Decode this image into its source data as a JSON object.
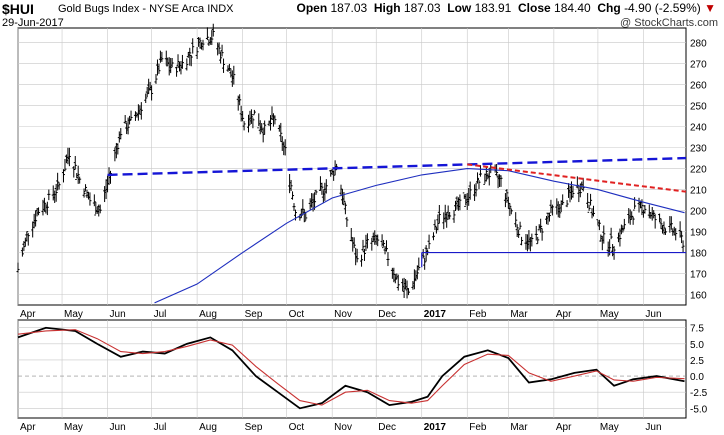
{
  "header": {
    "symbol": "$HUI",
    "name": "Gold Bugs Index - NYSE Arca",
    "exchange": "INDX",
    "date": "29-Jun-2017",
    "open_label": "Open",
    "open": "187.03",
    "high_label": "High",
    "high": "187.03",
    "low_label": "Low",
    "low": "183.91",
    "close_label": "Close",
    "close": "184.40",
    "chg_label": "Chg",
    "chg": "-4.90 (-2.59%)",
    "chg_arrow": "▼",
    "watermark": "@ StockCharts.com"
  },
  "colors": {
    "price_bars": "#000000",
    "ma_line": "#1f2fbf",
    "upper_trend": "#1515d6",
    "lower_trend": "#e02020",
    "support": "#1a1ac8",
    "macd": "#000000",
    "signal": "#c83232",
    "grid": "#c8c8c8",
    "down_arrow": "#c00000"
  },
  "chart_data": [
    {
      "type": "line",
      "ylim": [
        155,
        287
      ],
      "xlim": [
        "2016-04-01",
        "2017-06-30"
      ],
      "x_tick_labels": [
        {
          "date": "2016-04-01",
          "label": "Apr"
        },
        {
          "date": "2016-05-01",
          "label": "May"
        },
        {
          "date": "2016-06-01",
          "label": "Jun"
        },
        {
          "date": "2016-07-01",
          "label": "Jul"
        },
        {
          "date": "2016-08-01",
          "label": "Aug"
        },
        {
          "date": "2016-09-01",
          "label": "Sep"
        },
        {
          "date": "2016-10-01",
          "label": "Oct"
        },
        {
          "date": "2016-11-01",
          "label": "Nov"
        },
        {
          "date": "2016-12-01",
          "label": "Dec"
        },
        {
          "date": "2017-01-01",
          "label": "2017",
          "bold": true
        },
        {
          "date": "2017-02-01",
          "label": "Feb"
        },
        {
          "date": "2017-03-01",
          "label": "Mar"
        },
        {
          "date": "2017-04-01",
          "label": "Apr"
        },
        {
          "date": "2017-05-01",
          "label": "May"
        },
        {
          "date": "2017-06-01",
          "label": "Jun"
        }
      ],
      "y_ticks": [
        160,
        170,
        180,
        190,
        200,
        210,
        220,
        230,
        240,
        250,
        260,
        270,
        280
      ],
      "price_series": {
        "name": "",
        "points": [
          [
            "2016-04-01",
            172
          ],
          [
            "2016-04-08",
            190
          ],
          [
            "2016-04-15",
            200
          ],
          [
            "2016-04-22",
            205
          ],
          [
            "2016-04-29",
            212
          ],
          [
            "2016-05-06",
            228
          ],
          [
            "2016-05-13",
            215
          ],
          [
            "2016-05-20",
            205
          ],
          [
            "2016-05-27",
            200
          ],
          [
            "2016-06-03",
            218
          ],
          [
            "2016-06-10",
            238
          ],
          [
            "2016-06-17",
            242
          ],
          [
            "2016-06-24",
            250
          ],
          [
            "2016-07-01",
            258
          ],
          [
            "2016-07-08",
            272
          ],
          [
            "2016-07-15",
            268
          ],
          [
            "2016-07-22",
            270
          ],
          [
            "2016-07-29",
            276
          ],
          [
            "2016-08-05",
            282
          ],
          [
            "2016-08-12",
            283
          ],
          [
            "2016-08-19",
            272
          ],
          [
            "2016-08-26",
            262
          ],
          [
            "2016-09-02",
            242
          ],
          [
            "2016-09-09",
            246
          ],
          [
            "2016-09-16",
            238
          ],
          [
            "2016-09-23",
            244
          ],
          [
            "2016-09-30",
            228
          ],
          [
            "2016-10-07",
            200
          ],
          [
            "2016-10-14",
            198
          ],
          [
            "2016-10-21",
            206
          ],
          [
            "2016-10-28",
            212
          ],
          [
            "2016-11-04",
            222
          ],
          [
            "2016-11-11",
            196
          ],
          [
            "2016-11-18",
            176
          ],
          [
            "2016-11-25",
            184
          ],
          [
            "2016-12-02",
            186
          ],
          [
            "2016-12-09",
            178
          ],
          [
            "2016-12-16",
            166
          ],
          [
            "2016-12-23",
            161
          ],
          [
            "2016-12-30",
            172
          ],
          [
            "2017-01-06",
            182
          ],
          [
            "2017-01-13",
            196
          ],
          [
            "2017-01-20",
            200
          ],
          [
            "2017-01-27",
            202
          ],
          [
            "2017-02-03",
            208
          ],
          [
            "2017-02-10",
            215
          ],
          [
            "2017-02-17",
            218
          ],
          [
            "2017-02-24",
            214
          ],
          [
            "2017-03-03",
            200
          ],
          [
            "2017-03-10",
            188
          ],
          [
            "2017-03-17",
            184
          ],
          [
            "2017-03-24",
            192
          ],
          [
            "2017-03-31",
            200
          ],
          [
            "2017-04-07",
            202
          ],
          [
            "2017-04-14",
            210
          ],
          [
            "2017-04-21",
            212
          ],
          [
            "2017-04-28",
            198
          ],
          [
            "2017-05-05",
            186
          ],
          [
            "2017-05-12",
            184
          ],
          [
            "2017-05-19",
            192
          ],
          [
            "2017-05-26",
            200
          ],
          [
            "2017-06-02",
            202
          ],
          [
            "2017-06-09",
            196
          ],
          [
            "2017-06-16",
            192
          ],
          [
            "2017-06-23",
            190
          ],
          [
            "2017-06-29",
            184.4
          ]
        ]
      },
      "moving_average": {
        "name": "",
        "points": [
          [
            "2016-07-03",
            156
          ],
          [
            "2016-08-01",
            165
          ],
          [
            "2016-09-01",
            180
          ],
          [
            "2016-10-01",
            194
          ],
          [
            "2016-11-01",
            206
          ],
          [
            "2016-12-01",
            212
          ],
          [
            "2017-01-01",
            217
          ],
          [
            "2017-02-01",
            220
          ],
          [
            "2017-03-01",
            219
          ],
          [
            "2017-04-01",
            214
          ],
          [
            "2017-05-01",
            210
          ],
          [
            "2017-06-01",
            204
          ],
          [
            "2017-06-29",
            199
          ]
        ]
      },
      "trendlines": [
        {
          "id": "upper-resistance",
          "points": [
            [
              "2016-06-01",
              217
            ],
            [
              "2017-06-30",
              225
            ]
          ]
        },
        {
          "id": "lower-resistance",
          "points": [
            [
              "2017-02-01",
              222
            ],
            [
              "2017-06-30",
              209
            ]
          ]
        },
        {
          "id": "support",
          "points": [
            [
              "2017-01-01",
              180
            ],
            [
              "2017-06-30",
              180
            ]
          ]
        },
        {
          "id": "support-tick",
          "points": [
            [
              "2017-01-01",
              180
            ],
            [
              "2017-01-01",
              173
            ]
          ]
        }
      ]
    },
    {
      "type": "line",
      "ylim": [
        -6.5,
        8.7
      ],
      "xlim": [
        "2016-04-01",
        "2017-06-30"
      ],
      "y_ticks": [
        -5.0,
        -2.5,
        0.0,
        2.5,
        5.0,
        7.5
      ],
      "y_tick_labels": [
        "-5.0",
        "-2.5",
        "0.0",
        "2.5",
        "5.0",
        "7.5"
      ],
      "series": [
        {
          "name": "",
          "points": [
            [
              "2016-04-01",
              6.0
            ],
            [
              "2016-04-20",
              7.5
            ],
            [
              "2016-05-10",
              7.0
            ],
            [
              "2016-05-25",
              5.0
            ],
            [
              "2016-06-10",
              3.0
            ],
            [
              "2016-06-25",
              3.8
            ],
            [
              "2016-07-10",
              3.5
            ],
            [
              "2016-07-25",
              5.0
            ],
            [
              "2016-08-10",
              6.0
            ],
            [
              "2016-08-25",
              4.0
            ],
            [
              "2016-09-10",
              0.0
            ],
            [
              "2016-09-25",
              -2.5
            ],
            [
              "2016-10-10",
              -5.0
            ],
            [
              "2016-10-25",
              -4.2
            ],
            [
              "2016-11-10",
              -1.5
            ],
            [
              "2016-11-25",
              -2.5
            ],
            [
              "2016-12-10",
              -4.5
            ],
            [
              "2016-12-25",
              -4.0
            ],
            [
              "2017-01-05",
              -3.2
            ],
            [
              "2017-01-15",
              0.0
            ],
            [
              "2017-01-30",
              3.0
            ],
            [
              "2017-02-15",
              4.0
            ],
            [
              "2017-03-01",
              2.8
            ],
            [
              "2017-03-15",
              -1.0
            ],
            [
              "2017-03-30",
              -0.5
            ],
            [
              "2017-04-15",
              0.5
            ],
            [
              "2017-04-30",
              1.0
            ],
            [
              "2017-05-12",
              -1.5
            ],
            [
              "2017-05-25",
              -0.5
            ],
            [
              "2017-06-10",
              0.0
            ],
            [
              "2017-06-29",
              -0.8
            ]
          ]
        },
        {
          "name": "",
          "points": [
            [
              "2016-04-01",
              6.5
            ],
            [
              "2016-04-20",
              7.0
            ],
            [
              "2016-05-10",
              7.2
            ],
            [
              "2016-05-25",
              5.8
            ],
            [
              "2016-06-10",
              3.8
            ],
            [
              "2016-06-25",
              3.5
            ],
            [
              "2016-07-10",
              3.8
            ],
            [
              "2016-07-25",
              4.6
            ],
            [
              "2016-08-10",
              5.6
            ],
            [
              "2016-08-25",
              4.8
            ],
            [
              "2016-09-10",
              1.5
            ],
            [
              "2016-09-25",
              -1.2
            ],
            [
              "2016-10-10",
              -3.8
            ],
            [
              "2016-10-25",
              -4.5
            ],
            [
              "2016-11-10",
              -2.5
            ],
            [
              "2016-11-25",
              -2.2
            ],
            [
              "2016-12-10",
              -3.8
            ],
            [
              "2016-12-25",
              -4.2
            ],
            [
              "2017-01-05",
              -3.8
            ],
            [
              "2017-01-15",
              -1.5
            ],
            [
              "2017-01-30",
              1.8
            ],
            [
              "2017-02-15",
              3.4
            ],
            [
              "2017-03-01",
              3.2
            ],
            [
              "2017-03-15",
              0.5
            ],
            [
              "2017-03-30",
              -0.8
            ],
            [
              "2017-04-15",
              0.0
            ],
            [
              "2017-04-30",
              0.8
            ],
            [
              "2017-05-12",
              -0.6
            ],
            [
              "2017-05-25",
              -0.8
            ],
            [
              "2017-06-10",
              -0.2
            ],
            [
              "2017-06-29",
              -0.4
            ]
          ]
        }
      ]
    }
  ]
}
